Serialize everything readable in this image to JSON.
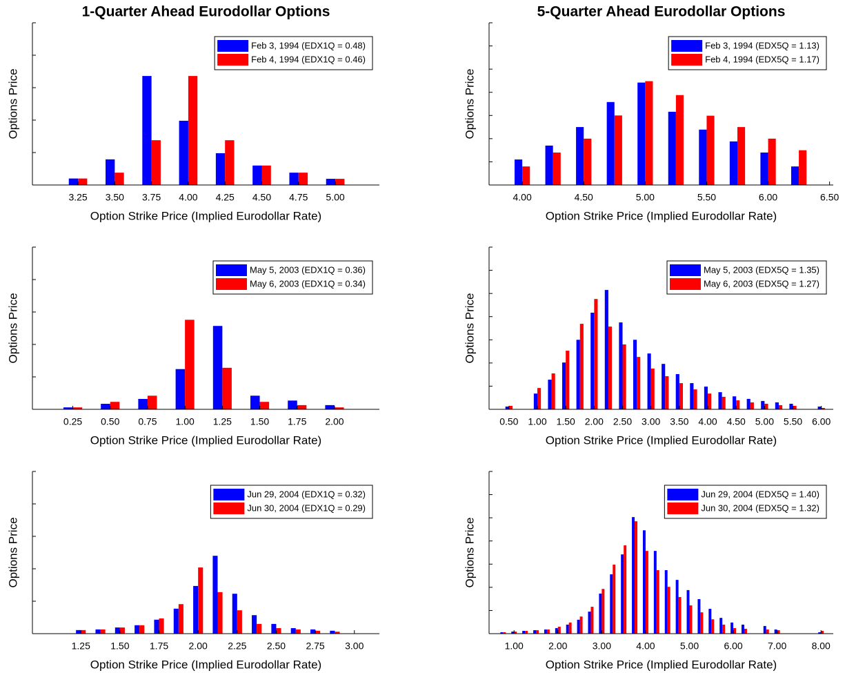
{
  "chart_data": [
    {
      "type": "bar",
      "title": "1-Quarter Ahead Eurodollar Options",
      "xlabel": "Option Strike Price (Implied Eurodollar Rate)",
      "ylabel": "Options Price",
      "legend": "upper right",
      "x": [
        3.25,
        3.5,
        3.75,
        4,
        4.25,
        4.5,
        4.75,
        5
      ],
      "series": [
        {
          "name": "Feb 3, 1994 (EDX1Q = 0.48)",
          "color": "#0000ff",
          "values": [
            0.2,
            0.79,
            3.36,
            1.98,
            0.98,
            0.6,
            0.38,
            0.19
          ]
        },
        {
          "name": "Feb 4, 1994 (EDX1Q = 0.46)",
          "color": "#ff0000",
          "values": [
            0.2,
            0.38,
            1.38,
            3.36,
            1.38,
            0.6,
            0.38,
            0.19
          ]
        }
      ],
      "xlim": [
        2.94,
        5.3
      ],
      "xticks": [
        {
          "value": 3.25,
          "label": "3.25"
        },
        {
          "value": 3.5,
          "label": "3.50"
        },
        {
          "value": 3.75,
          "label": "3.75"
        },
        {
          "value": 4,
          "label": "4.00"
        },
        {
          "value": 4.25,
          "label": "4.25"
        },
        {
          "value": 4.5,
          "label": "4.50"
        },
        {
          "value": 4.75,
          "label": "4.75"
        },
        {
          "value": 5,
          "label": "5.00"
        }
      ],
      "ylim": [
        0,
        5
      ],
      "yticks": [
        0,
        1,
        2,
        3,
        4,
        5
      ]
    },
    {
      "type": "bar",
      "title": "5-Quarter Ahead Eurodollar Options",
      "xlabel": "Option Strike Price (Implied Eurodollar Rate)",
      "ylabel": "Options Price",
      "legend": "upper right",
      "x": [
        4,
        4.25,
        4.5,
        4.75,
        5,
        5.25,
        5.5,
        5.75,
        6,
        6.25
      ],
      "series": [
        {
          "name": "Feb 3, 1994 (EDX5Q = 1.13)",
          "color": "#0000ff",
          "values": [
            1.1,
            1.7,
            2.5,
            3.58,
            4.42,
            3.16,
            2.39,
            1.88,
            1.4,
            0.8
          ]
        },
        {
          "name": "Feb 4, 1994 (EDX5Q = 1.17)",
          "color": "#ff0000",
          "values": [
            0.8,
            1.4,
            2.0,
            3.0,
            4.48,
            3.88,
            2.99,
            2.5,
            2.0,
            1.5
          ]
        }
      ],
      "xlim": [
        3.73,
        6.53
      ],
      "xticks": [
        {
          "value": 4,
          "label": "4.00"
        },
        {
          "value": 4.5,
          "label": "4.50"
        },
        {
          "value": 5,
          "label": "5.00"
        },
        {
          "value": 5.5,
          "label": "5.50"
        },
        {
          "value": 6,
          "label": "6.00"
        },
        {
          "value": 6.5,
          "label": "6.50"
        }
      ],
      "ylim": [
        0,
        7
      ],
      "yticks": [
        0,
        1,
        2,
        3,
        4,
        5,
        6,
        7
      ]
    },
    {
      "type": "bar",
      "xlabel": "Option Strike Price (Implied Eurodollar Rate)",
      "ylabel": "Options Price",
      "legend": "upper right",
      "x": [
        0.25,
        0.5,
        0.75,
        1,
        1.25,
        1.5,
        1.75,
        2
      ],
      "series": [
        {
          "name": "May 5, 2003 (EDX1Q = 0.36)",
          "color": "#0000ff",
          "values": [
            0.06,
            0.17,
            0.32,
            1.24,
            2.57,
            0.42,
            0.27,
            0.13
          ]
        },
        {
          "name": "May 6, 2003 (EDX1Q = 0.34)",
          "color": "#ff0000",
          "values": [
            0.06,
            0.23,
            0.42,
            2.76,
            1.28,
            0.23,
            0.13,
            0.06
          ]
        }
      ],
      "xlim": [
        -0.02,
        2.3
      ],
      "xticks": [
        {
          "value": 0.25,
          "label": "0.25"
        },
        {
          "value": 0.5,
          "label": "0.50"
        },
        {
          "value": 0.75,
          "label": "0.75"
        },
        {
          "value": 1,
          "label": "1.00"
        },
        {
          "value": 1.25,
          "label": "1.25"
        },
        {
          "value": 1.5,
          "label": "1.50"
        },
        {
          "value": 1.75,
          "label": "1.75"
        },
        {
          "value": 2,
          "label": "2.00"
        }
      ],
      "ylim": [
        0,
        5
      ],
      "yticks": [
        0,
        1,
        2,
        3,
        4,
        5
      ]
    },
    {
      "type": "bar",
      "xlabel": "Option Strike Price (Implied Eurodollar Rate)",
      "ylabel": "Options Price",
      "legend": "upper right",
      "x": [
        0.5,
        1,
        1.25,
        1.5,
        1.75,
        2,
        2.25,
        2.5,
        2.75,
        3,
        3.25,
        3.5,
        3.75,
        4,
        4.25,
        4.5,
        4.75,
        5,
        5.25,
        5.5,
        6
      ],
      "series": [
        {
          "name": "May 5, 2003 (EDX5Q = 1.35)",
          "color": "#0000ff",
          "values": [
            0.12,
            0.68,
            1.28,
            2.02,
            3.0,
            4.17,
            5.15,
            3.75,
            3.0,
            2.41,
            1.96,
            1.52,
            1.13,
            0.98,
            0.74,
            0.56,
            0.45,
            0.36,
            0.3,
            0.24,
            0.12
          ]
        },
        {
          "name": "May 6, 2003 (EDX5Q = 1.27)",
          "color": "#ff0000",
          "values": [
            0.15,
            0.92,
            1.55,
            2.53,
            3.69,
            4.76,
            3.57,
            2.8,
            2.26,
            1.76,
            1.43,
            1.13,
            0.86,
            0.68,
            0.54,
            0.39,
            0.3,
            0.24,
            0.18,
            0.15,
            0.06
          ]
        }
      ],
      "xlim": [
        0.15,
        6.21
      ],
      "xticks": [
        {
          "value": 0.5,
          "label": "0.50"
        },
        {
          "value": 1,
          "label": "1.00"
        },
        {
          "value": 1.5,
          "label": "1.50"
        },
        {
          "value": 2,
          "label": "2.00"
        },
        {
          "value": 2.5,
          "label": "2.50"
        },
        {
          "value": 3,
          "label": "3.00"
        },
        {
          "value": 3.5,
          "label": "3.50"
        },
        {
          "value": 4,
          "label": "4.00"
        },
        {
          "value": 4.5,
          "label": "4.50"
        },
        {
          "value": 5,
          "label": "5.00"
        },
        {
          "value": 5.5,
          "label": "5.50"
        },
        {
          "value": 6,
          "label": "6.00"
        }
      ],
      "ylim": [
        0,
        7
      ],
      "yticks": [
        0,
        1,
        2,
        3,
        4,
        5,
        6,
        7
      ]
    },
    {
      "type": "bar",
      "xlabel": "Option Strike Price (Implied Eurodollar Rate)",
      "ylabel": "Options Price",
      "legend": "upper right",
      "x": [
        1.25,
        1.375,
        1.5,
        1.625,
        1.75,
        1.875,
        2,
        2.125,
        2.25,
        2.375,
        2.5,
        2.625,
        2.75,
        2.875
      ],
      "series": [
        {
          "name": "Jun 29, 2004 (EDX1Q = 0.32)",
          "color": "#0000ff",
          "values": [
            0.11,
            0.13,
            0.19,
            0.26,
            0.43,
            0.77,
            1.47,
            2.4,
            1.23,
            0.57,
            0.3,
            0.17,
            0.13,
            0.09
          ]
        },
        {
          "name": "Jun 30, 2004 (EDX1Q = 0.29)",
          "color": "#ff0000",
          "values": [
            0.11,
            0.13,
            0.19,
            0.26,
            0.47,
            0.91,
            2.04,
            1.28,
            0.72,
            0.3,
            0.17,
            0.13,
            0.09,
            0.06
          ]
        }
      ],
      "xlim": [
        0.94,
        3.16
      ],
      "xticks": [
        {
          "value": 1.25,
          "label": "1.25"
        },
        {
          "value": 1.5,
          "label": "1.50"
        },
        {
          "value": 1.75,
          "label": "1.75"
        },
        {
          "value": 2,
          "label": "2.00"
        },
        {
          "value": 2.25,
          "label": "2.25"
        },
        {
          "value": 2.5,
          "label": "2.50"
        },
        {
          "value": 2.75,
          "label": "2.75"
        },
        {
          "value": 3,
          "label": "3.00"
        }
      ],
      "ylim": [
        0,
        5
      ],
      "yticks": [
        0,
        1,
        2,
        3,
        4,
        5
      ]
    },
    {
      "type": "bar",
      "xlabel": "Option Strike Price (Implied Eurodollar Rate)",
      "ylabel": "Options Price",
      "legend": "upper right",
      "x": [
        0.75,
        1,
        1.25,
        1.5,
        1.75,
        2,
        2.25,
        2.5,
        2.75,
        3,
        3.25,
        3.5,
        3.75,
        4,
        4.25,
        4.5,
        4.75,
        5,
        5.25,
        5.5,
        5.75,
        6,
        6.25,
        6.75,
        7,
        8
      ],
      "series": [
        {
          "name": "Jun 29, 2004 (EDX5Q = 1.40)",
          "color": "#0000ff",
          "values": [
            0.06,
            0.09,
            0.12,
            0.15,
            0.18,
            0.24,
            0.39,
            0.6,
            0.95,
            1.73,
            2.56,
            3.42,
            5.03,
            4.46,
            3.57,
            2.74,
            2.32,
            1.88,
            1.49,
            1.07,
            0.68,
            0.48,
            0.39,
            0.33,
            0.18,
            0.06
          ]
        },
        {
          "name": "Jun 30, 2004 (EDX5Q = 1.32)",
          "color": "#ff0000",
          "values": [
            0.06,
            0.09,
            0.12,
            0.15,
            0.18,
            0.3,
            0.48,
            0.74,
            1.16,
            1.93,
            2.98,
            3.81,
            4.85,
            3.57,
            2.74,
            2.02,
            1.58,
            1.22,
            0.92,
            0.62,
            0.39,
            0.24,
            0.21,
            0.18,
            0.15,
            0.12
          ]
        }
      ],
      "xlim": [
        0.43,
        8.28
      ],
      "xticks": [
        {
          "value": 1,
          "label": "1.00"
        },
        {
          "value": 2,
          "label": "2.00"
        },
        {
          "value": 3,
          "label": "3.00"
        },
        {
          "value": 4,
          "label": "4.00"
        },
        {
          "value": 5,
          "label": "5.00"
        },
        {
          "value": 6,
          "label": "6.00"
        },
        {
          "value": 7,
          "label": "7.00"
        },
        {
          "value": 8,
          "label": "8.00"
        }
      ],
      "ylim": [
        0,
        7
      ],
      "yticks": [
        0,
        1,
        2,
        3,
        4,
        5,
        6,
        7
      ]
    }
  ]
}
